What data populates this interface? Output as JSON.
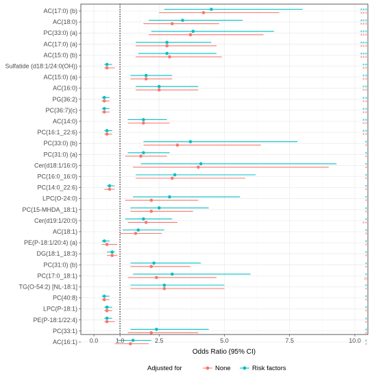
{
  "chart_data": {
    "type": "forest",
    "title": "",
    "xlabel": "Odds Ratio (95% CI)",
    "ylabel": "",
    "xlim": [
      -0.5,
      10.5
    ],
    "x_ticks": [
      "0.0",
      "1.0",
      "2.5",
      "5.0",
      "7.5",
      "10.0"
    ],
    "reference_line": 1.0,
    "grid": true,
    "legend": {
      "title": "Adjusted for",
      "position": "bottom",
      "entries": [
        {
          "name": "None",
          "color": "#F8766D"
        },
        {
          "name": "Risk factors",
          "color": "#00BFC4"
        }
      ]
    },
    "categories": [
      "AC(17:0) (b)",
      "AC(18:0)",
      "PC(33:0) (a)",
      "AC(17:0) (a)",
      "AC(15:0) (b)",
      "Sulfatide (d18:1/24:0(OH))",
      "AC(15:0) (a)",
      "AC(16:0)",
      "PG(36:2)",
      "PC(36:7)(c)",
      "AC(14:0)",
      "PC(16:1_22:6)",
      "PC(33:0) (b)",
      "PC(31:0) (a)",
      "Cer(d18:1/16:0)",
      "PC(16:0_16:0)",
      "PC(14:0_22:6)",
      "LPC(O-24:0)",
      "PC(15-MHDA_18:1)",
      "Cer(d19:1/20:0)",
      "AC(18:1)",
      "PE(P-18:1/20:4) (a)",
      "DG(18:1_18:3)",
      "PC(31:0) (b)",
      "PC(17:0_18:1)",
      "TG(O-54:2) [NL-18:1]",
      "PC(40:8)",
      "LPC(P-18:1)",
      "PE(P-18:1/22:4)",
      "PC(33:1)",
      "AC(16:1)"
    ],
    "series": [
      {
        "name": "None",
        "color": "#F8766D",
        "or": [
          4.2,
          3.0,
          3.7,
          2.8,
          2.9,
          0.5,
          2.0,
          2.5,
          0.4,
          0.4,
          1.9,
          0.5,
          3.2,
          1.8,
          4.0,
          3.0,
          0.6,
          2.2,
          2.2,
          2.0,
          1.6,
          0.5,
          0.7,
          2.2,
          2.4,
          2.7,
          0.4,
          0.5,
          0.5,
          2.2,
          1.4
        ],
        "lower": [
          2.5,
          1.9,
          2.1,
          1.6,
          1.6,
          0.4,
          1.4,
          1.6,
          0.3,
          0.3,
          1.3,
          0.4,
          1.9,
          1.2,
          1.5,
          1.6,
          0.4,
          1.2,
          1.4,
          1.3,
          1.0,
          0.3,
          0.5,
          1.4,
          1.3,
          1.4,
          0.3,
          0.4,
          0.4,
          1.3,
          0.8
        ],
        "upper": [
          7.1,
          4.8,
          6.5,
          4.7,
          4.9,
          0.8,
          3.0,
          4.0,
          0.6,
          0.6,
          2.9,
          0.7,
          6.4,
          2.8,
          9.0,
          5.8,
          0.8,
          4.0,
          3.8,
          3.2,
          2.6,
          0.9,
          0.9,
          3.7,
          4.7,
          5.0,
          0.6,
          0.7,
          0.8,
          4.0,
          2.1
        ],
        "significance": [
          "***",
          "***",
          "***",
          "***",
          "***",
          "**",
          "**",
          "**",
          "**",
          "**",
          "**",
          "**",
          "*",
          "*",
          "*",
          "*",
          "*",
          "*",
          "*",
          "**",
          "*",
          "*",
          "*",
          "*",
          "o",
          "*",
          "*",
          "*",
          "*",
          "*",
          "*"
        ]
      },
      {
        "name": "Risk factors",
        "color": "#00BFC4",
        "or": [
          4.5,
          3.4,
          3.8,
          2.8,
          2.8,
          0.5,
          2.0,
          2.5,
          0.4,
          0.4,
          1.9,
          0.5,
          3.7,
          1.9,
          4.1,
          3.1,
          0.6,
          2.9,
          2.5,
          1.9,
          1.7,
          0.4,
          0.7,
          2.3,
          3.0,
          2.7,
          0.4,
          0.5,
          0.5,
          2.4,
          1.5
        ],
        "lower": [
          2.7,
          2.1,
          2.2,
          1.6,
          1.7,
          0.4,
          1.4,
          1.6,
          0.3,
          0.3,
          1.3,
          0.4,
          1.9,
          1.3,
          1.8,
          1.6,
          0.5,
          1.5,
          1.4,
          1.2,
          1.1,
          0.3,
          0.5,
          1.4,
          1.5,
          1.4,
          0.3,
          0.4,
          0.4,
          1.4,
          0.9
        ],
        "upper": [
          8.0,
          5.7,
          6.9,
          4.5,
          4.7,
          0.7,
          3.0,
          4.0,
          0.6,
          0.6,
          2.8,
          0.7,
          7.8,
          2.9,
          9.3,
          6.2,
          0.8,
          5.6,
          4.4,
          3.0,
          2.7,
          0.6,
          0.8,
          4.1,
          6.0,
          5.0,
          0.6,
          0.7,
          0.7,
          4.4,
          2.2
        ],
        "significance": [
          "***",
          "***",
          "***",
          "***",
          "***",
          "**",
          "**",
          "**",
          "**",
          "**",
          "**",
          "**",
          "*",
          "*",
          "*",
          "*",
          "*",
          "*",
          "*",
          "*",
          "*",
          "*",
          "*",
          "*",
          "*",
          "*",
          "*",
          "*",
          "*",
          "*",
          "*"
        ]
      }
    ]
  }
}
